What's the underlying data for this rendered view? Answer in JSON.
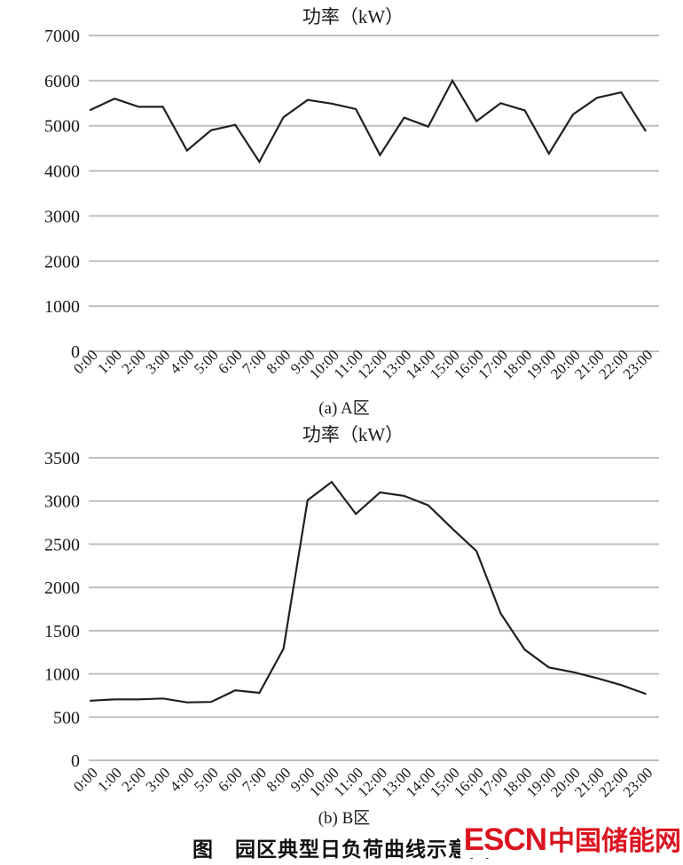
{
  "page": {
    "background": "#ffffff"
  },
  "caption": "图　园区典型日负荷曲线示意图",
  "logo": {
    "text_en": "ESCN",
    "text_cn": "中国储能网",
    "color": "#dc1420"
  },
  "chart_data": [
    {
      "type": "line",
      "title": "功率（kW）",
      "sublabel": "(a) A区",
      "categories": [
        "0:00",
        "1:00",
        "2:00",
        "3:00",
        "4:00",
        "5:00",
        "6:00",
        "7:00",
        "8:00",
        "9:00",
        "10:00",
        "11:00",
        "12:00",
        "13:00",
        "14:00",
        "15:00",
        "16:00",
        "17:00",
        "18:00",
        "19:00",
        "20:00",
        "21:00",
        "22:00",
        "23:00"
      ],
      "values": [
        5350,
        5600,
        5420,
        5420,
        4450,
        4900,
        5020,
        4200,
        5190,
        5570,
        5490,
        5370,
        4350,
        5180,
        4980,
        6000,
        5100,
        5500,
        5340,
        4380,
        5250,
        5620,
        5740,
        4890
      ],
      "ylim": [
        0,
        7000
      ],
      "ytick_step": 1000,
      "grid": true,
      "legend": "none",
      "line_color": "#231f20",
      "grid_color": "#bdbfc1",
      "text_color": "#1a1a1a"
    },
    {
      "type": "line",
      "title": "功率（kW）",
      "sublabel": "(b) B区",
      "categories": [
        "0:00",
        "1:00",
        "2:00",
        "3:00",
        "4:00",
        "5:00",
        "6:00",
        "7:00",
        "8:00",
        "9:00",
        "10:00",
        "11:00",
        "12:00",
        "13:00",
        "14:00",
        "15:00",
        "16:00",
        "17:00",
        "18:00",
        "19:00",
        "20:00",
        "21:00",
        "22:00",
        "23:00"
      ],
      "values": [
        690,
        705,
        705,
        715,
        670,
        675,
        810,
        780,
        1290,
        3010,
        3220,
        2850,
        3100,
        3060,
        2950,
        2680,
        2420,
        1700,
        1280,
        1075,
        1020,
        950,
        870,
        770
      ],
      "ylim": [
        0,
        3500
      ],
      "ytick_step": 500,
      "grid": true,
      "legend": "none",
      "line_color": "#231f20",
      "grid_color": "#bdbfc1",
      "text_color": "#1a1a1a"
    }
  ]
}
